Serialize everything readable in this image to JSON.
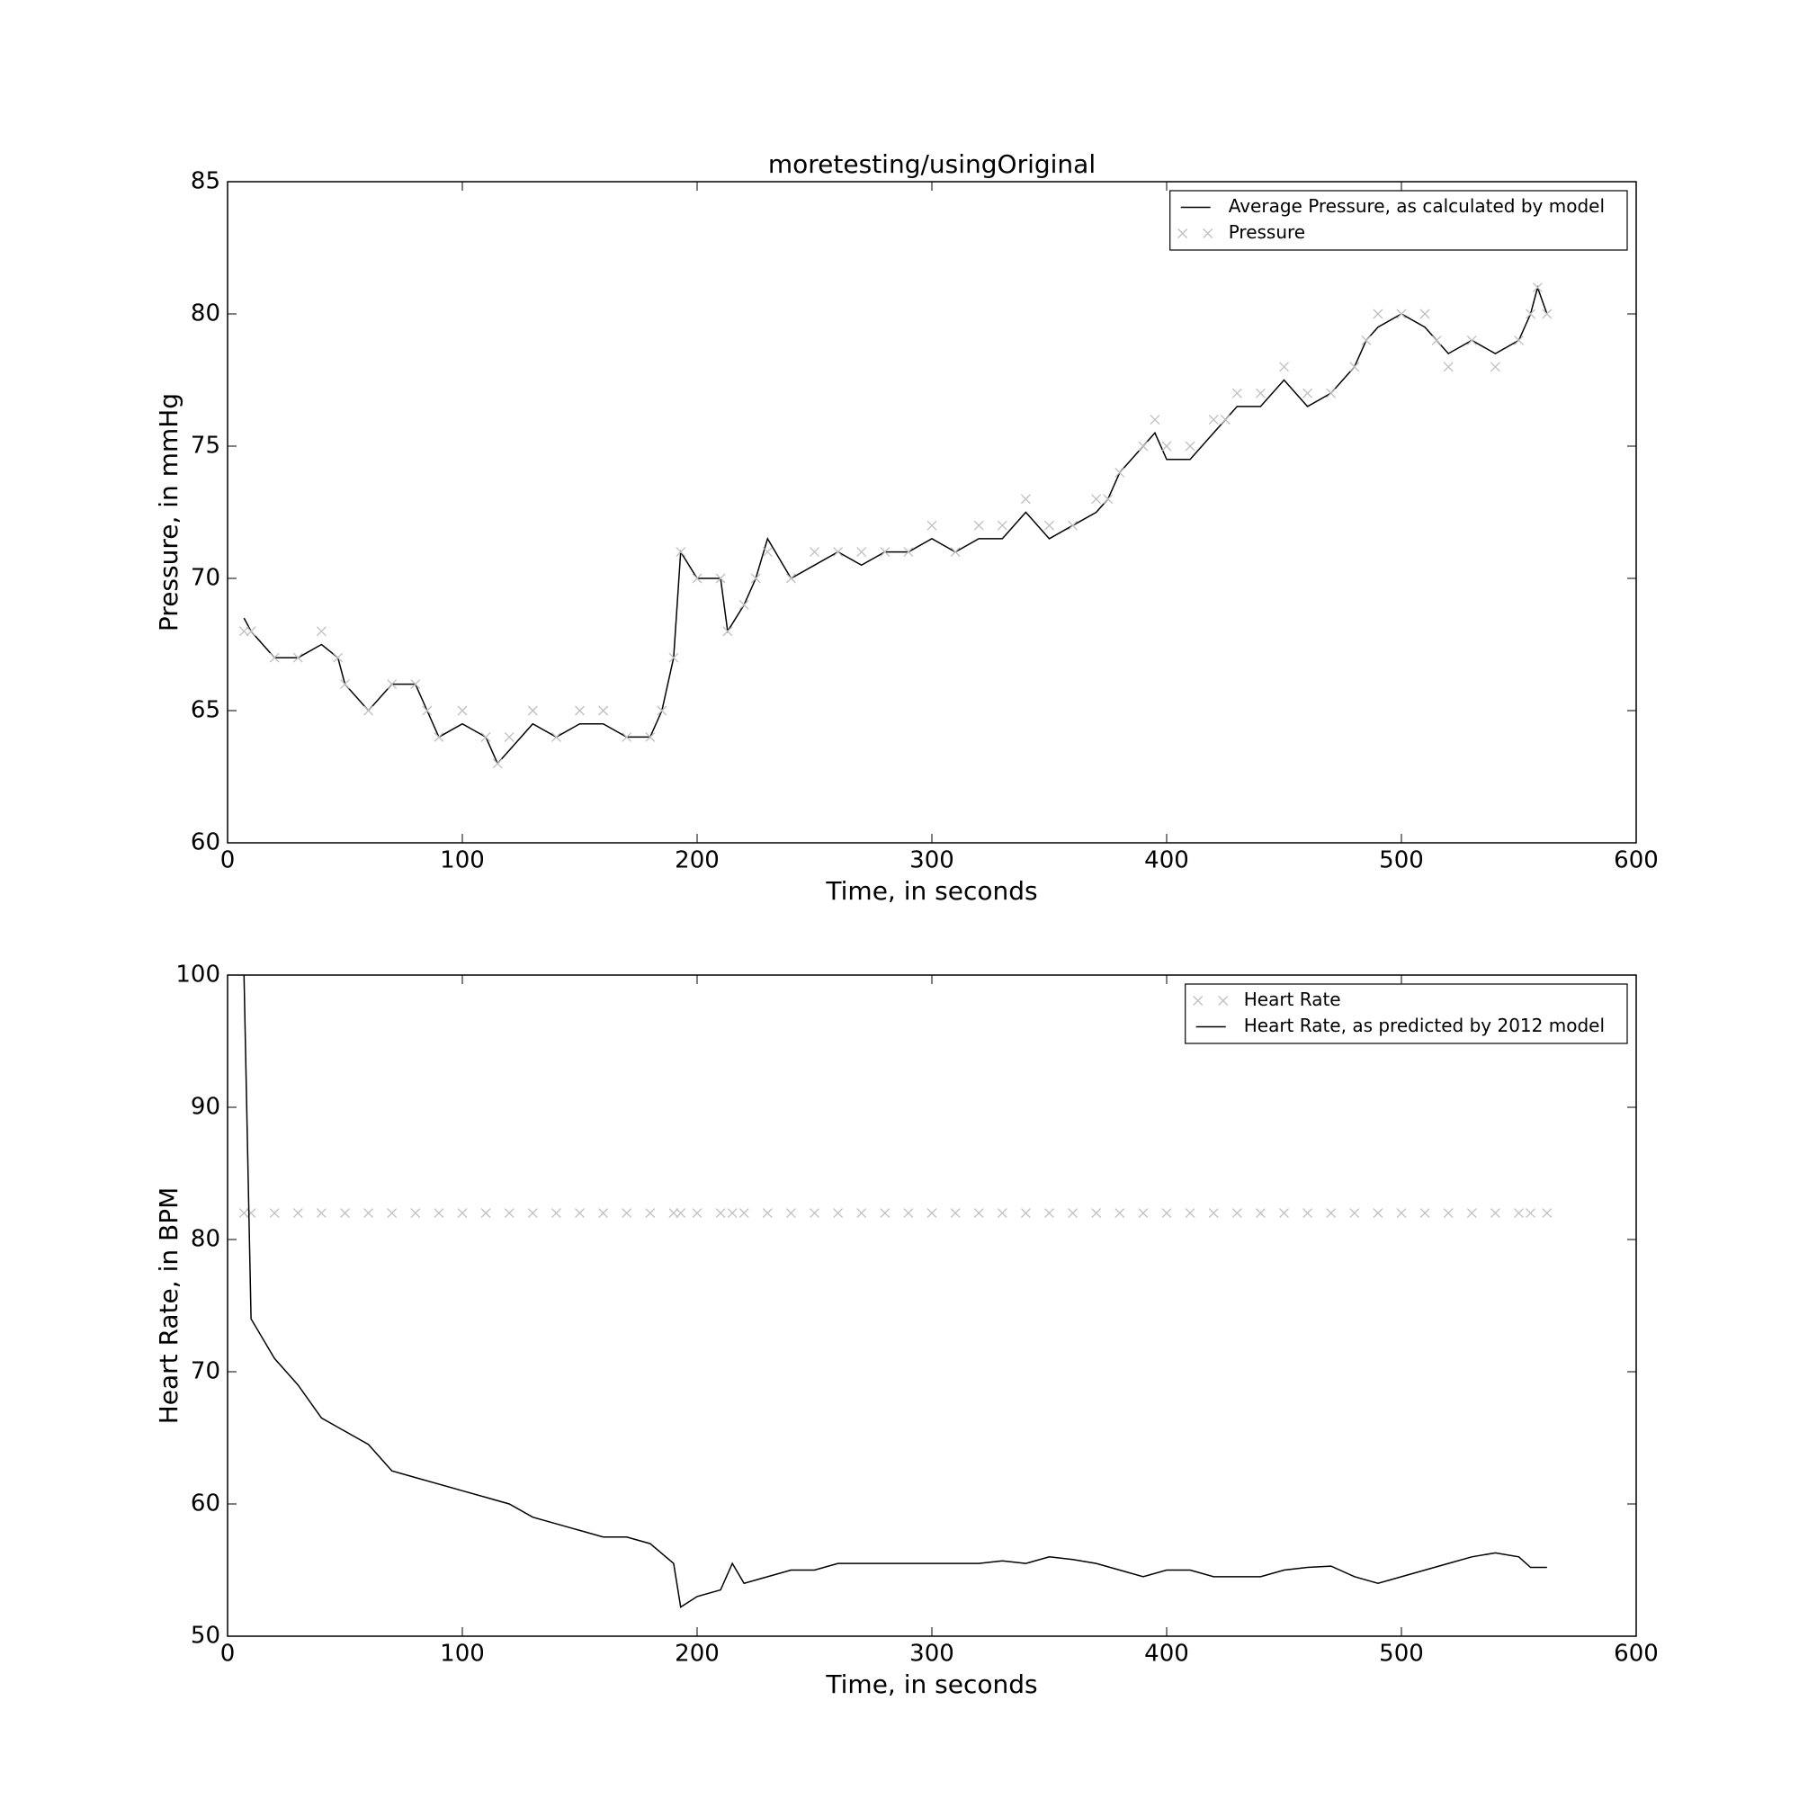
{
  "chart_data": [
    {
      "type": "line",
      "title": "moretesting/usingOriginal",
      "xlabel": "Time, in seconds",
      "ylabel": "Pressure, in mmHg",
      "xlim": [
        0,
        600
      ],
      "xticks": [
        0,
        100,
        200,
        300,
        400,
        500,
        600
      ],
      "ylim": [
        60,
        85
      ],
      "yticks": [
        60,
        65,
        70,
        75,
        80,
        85
      ],
      "legend": "upper right",
      "x": [
        7,
        10,
        20,
        30,
        40,
        47,
        50,
        60,
        70,
        80,
        85,
        90,
        100,
        110,
        115,
        120,
        130,
        140,
        150,
        160,
        170,
        180,
        185,
        190,
        193,
        200,
        210,
        213,
        220,
        225,
        230,
        240,
        250,
        260,
        270,
        280,
        290,
        300,
        310,
        320,
        330,
        340,
        350,
        360,
        370,
        375,
        380,
        390,
        395,
        400,
        410,
        420,
        425,
        430,
        440,
        450,
        460,
        470,
        480,
        485,
        490,
        500,
        510,
        515,
        520,
        530,
        540,
        550,
        555,
        558,
        562
      ],
      "series": [
        {
          "name": "Average Pressure, as calculated by model",
          "color": "#000000",
          "style": "line",
          "values": [
            68.5,
            68,
            67,
            67,
            67.5,
            67,
            66,
            65,
            66,
            66,
            65,
            64,
            64.5,
            64,
            63,
            63.5,
            64.5,
            64,
            64.5,
            64.5,
            64,
            64,
            65,
            67,
            71,
            70,
            70,
            68,
            69,
            70,
            71.5,
            70,
            70.5,
            71,
            70.5,
            71,
            71,
            71.5,
            71,
            71.5,
            71.5,
            72.5,
            71.5,
            72,
            72.5,
            73,
            74,
            75,
            75.5,
            74.5,
            74.5,
            75.5,
            76,
            76.5,
            76.5,
            77.5,
            76.5,
            77,
            78,
            79,
            79.5,
            80,
            79.5,
            79,
            78.5,
            79,
            78.5,
            79,
            80,
            81,
            80
          ]
        },
        {
          "name": "Pressure",
          "color": "#bfbfbf",
          "style": "x",
          "values": [
            68,
            68,
            67,
            67,
            68,
            67,
            66,
            65,
            66,
            66,
            65,
            64,
            65,
            64,
            63,
            64,
            65,
            64,
            65,
            65,
            64,
            64,
            65,
            67,
            71,
            70,
            70,
            68,
            69,
            70,
            71,
            70,
            71,
            71,
            71,
            71,
            71,
            72,
            71,
            72,
            72,
            73,
            72,
            72,
            73,
            73,
            74,
            75,
            76,
            75,
            75,
            76,
            76,
            77,
            77,
            78,
            77,
            77,
            78,
            79,
            80,
            80,
            80,
            79,
            78,
            79,
            78,
            79,
            80,
            81,
            80
          ]
        }
      ]
    },
    {
      "type": "line",
      "xlabel": "Time, in seconds",
      "ylabel": "Heart Rate, in BPM",
      "xlim": [
        0,
        600
      ],
      "xticks": [
        0,
        100,
        200,
        300,
        400,
        500,
        600
      ],
      "ylim": [
        50,
        100
      ],
      "yticks": [
        50,
        60,
        70,
        80,
        90,
        100
      ],
      "legend": "upper right",
      "x": [
        7,
        10,
        20,
        30,
        40,
        50,
        60,
        70,
        80,
        90,
        100,
        110,
        120,
        130,
        140,
        150,
        160,
        170,
        180,
        190,
        193,
        200,
        210,
        215,
        220,
        230,
        240,
        250,
        260,
        270,
        280,
        290,
        300,
        310,
        320,
        330,
        340,
        350,
        360,
        370,
        380,
        390,
        400,
        410,
        420,
        430,
        440,
        450,
        460,
        470,
        480,
        490,
        500,
        510,
        520,
        530,
        540,
        550,
        555,
        562
      ],
      "series": [
        {
          "name": "Heart Rate",
          "color": "#bfbfbf",
          "style": "x",
          "values": [
            82,
            82,
            82,
            82,
            82,
            82,
            82,
            82,
            82,
            82,
            82,
            82,
            82,
            82,
            82,
            82,
            82,
            82,
            82,
            82,
            82,
            82,
            82,
            82,
            82,
            82,
            82,
            82,
            82,
            82,
            82,
            82,
            82,
            82,
            82,
            82,
            82,
            82,
            82,
            82,
            82,
            82,
            82,
            82,
            82,
            82,
            82,
            82,
            82,
            82,
            82,
            82,
            82,
            82,
            82,
            82,
            82,
            82,
            82,
            82
          ]
        },
        {
          "name": "Heart Rate, as predicted by 2012 model",
          "color": "#000000",
          "style": "line",
          "values": [
            100,
            74,
            71,
            69,
            66.5,
            65.5,
            64.5,
            62.5,
            62,
            61.5,
            61,
            60.5,
            60,
            59,
            58.5,
            58,
            57.5,
            57.5,
            57,
            55.5,
            52.2,
            53,
            53.5,
            55.5,
            54,
            54.5,
            55,
            55,
            55.5,
            55.5,
            55.5,
            55.5,
            55.5,
            55.5,
            55.5,
            55.7,
            55.5,
            56,
            55.8,
            55.5,
            55,
            54.5,
            55,
            55,
            54.5,
            54.5,
            54.5,
            55,
            55.2,
            55.3,
            54.5,
            54,
            54.5,
            55,
            55.5,
            56,
            56.3,
            56,
            55.2,
            55.2
          ]
        }
      ]
    }
  ]
}
